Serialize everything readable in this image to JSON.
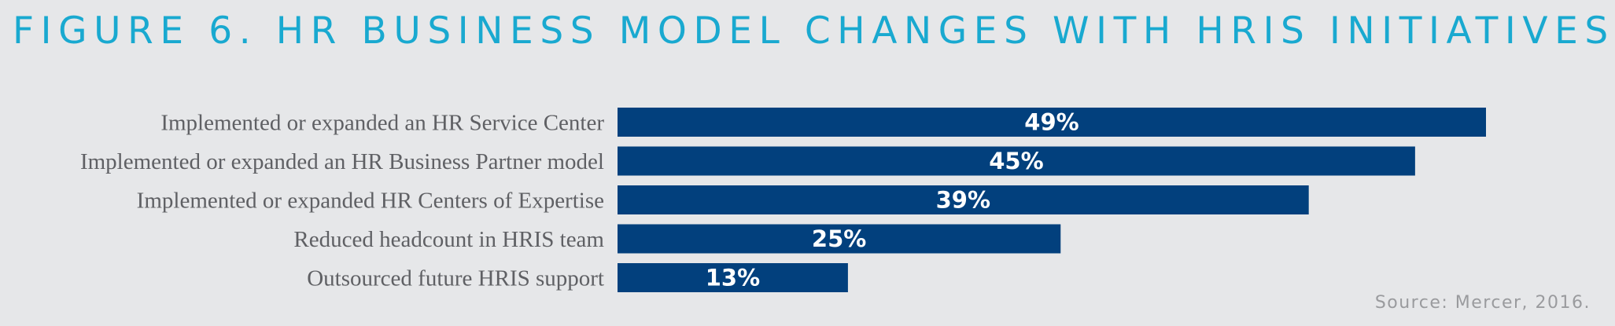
{
  "chart_data": {
    "type": "bar",
    "orientation": "horizontal",
    "title": "FIGURE 6. HR BUSINESS MODEL CHANGES WITH HRIS INITIATIVES",
    "categories": [
      "Implemented or expanded an HR Service Center",
      "Implemented or expanded an HR Business Partner model",
      "Implemented or expanded HR Centers of Expertise",
      "Reduced headcount in HRIS team",
      "Outsourced future HRIS support"
    ],
    "values": [
      49,
      45,
      39,
      25,
      13
    ],
    "value_labels": [
      "49%",
      "45%",
      "39%",
      "25%",
      "13%"
    ],
    "unit": "%",
    "bar_color": "#02407d",
    "title_color": "#19a9d0",
    "grid": false,
    "legend": false,
    "source": "Source: Mercer, 2016."
  }
}
